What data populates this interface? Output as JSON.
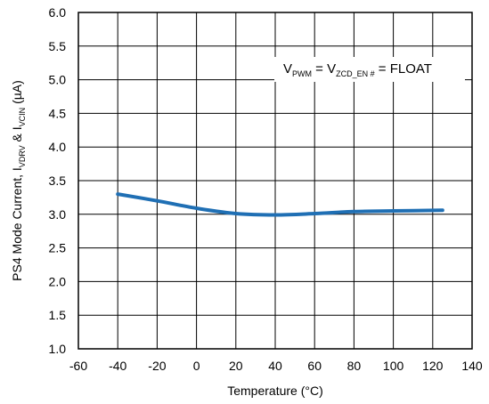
{
  "chart_data": {
    "type": "line",
    "title": "",
    "xlabel": "Temperature (°C)",
    "ylabel": {
      "parts": [
        {
          "text": "PS4 Mode Current, I",
          "sub": false
        },
        {
          "text": "VDRV",
          "sub": true
        },
        {
          "text": " & I",
          "sub": false
        },
        {
          "text": "VCIN",
          "sub": true
        },
        {
          "text": " (µA)",
          "sub": false
        }
      ]
    },
    "xlim": [
      -60,
      140
    ],
    "ylim": [
      1.0,
      6.0
    ],
    "xticks": [
      -60,
      -40,
      -20,
      0,
      20,
      40,
      60,
      80,
      100,
      120,
      140
    ],
    "yticks": [
      1.0,
      1.5,
      2.0,
      2.5,
      3.0,
      3.5,
      4.0,
      4.5,
      5.0,
      5.5,
      6.0
    ],
    "xtick_labels": [
      "-60",
      "-40",
      "-20",
      "0",
      "20",
      "40",
      "60",
      "80",
      "100",
      "120",
      "140"
    ],
    "ytick_labels": [
      "1.0",
      "1.5",
      "2.0",
      "2.5",
      "3.0",
      "3.5",
      "4.0",
      "4.5",
      "5.0",
      "5.5",
      "6.0"
    ],
    "grid": true,
    "series": [
      {
        "color": "#1f6fb4",
        "x": [
          -40,
          -20,
          0,
          20,
          40,
          60,
          80,
          100,
          125
        ],
        "y": [
          3.3,
          3.2,
          3.09,
          3.01,
          2.99,
          3.01,
          3.04,
          3.05,
          3.06
        ]
      }
    ],
    "annotation": {
      "parts": [
        {
          "text": "V",
          "sub": false
        },
        {
          "text": "PWM",
          "sub": true
        },
        {
          "text": " = V",
          "sub": false
        },
        {
          "text": "ZCD_EN #",
          "sub": true
        },
        {
          "text": " = FLOAT",
          "sub": false
        }
      ],
      "position": "top-right"
    }
  }
}
